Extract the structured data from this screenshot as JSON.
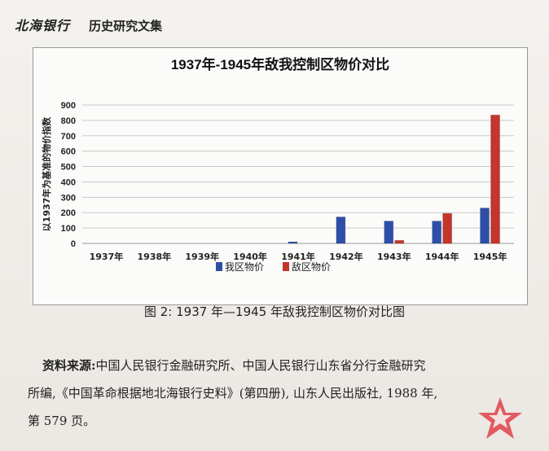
{
  "header": {
    "brand": "北海银行",
    "series": "历史研究文集"
  },
  "chart_data": {
    "type": "bar",
    "title": "1937年-1945年敌我控制区物价对比",
    "ylabel": "以1937年为基准的物价指数",
    "xlabel": "",
    "ylim": [
      0,
      900
    ],
    "yticks": [
      0,
      100,
      200,
      300,
      400,
      500,
      600,
      700,
      800,
      900
    ],
    "grid": true,
    "legend_position": "bottom",
    "categories": [
      "1937年",
      "1938年",
      "1939年",
      "1940年",
      "1941年",
      "1942年",
      "1943年",
      "1944年",
      "1945年"
    ],
    "series": [
      {
        "name": "我区物价",
        "color": "#2e4fa8",
        "values": [
          0,
          0,
          0,
          0,
          10,
          172,
          145,
          145,
          230
        ]
      },
      {
        "name": "敌区物价",
        "color": "#c4352b",
        "values": [
          0,
          0,
          0,
          0,
          0,
          0,
          20,
          195,
          835
        ]
      }
    ]
  },
  "caption": "图 2: 1937 年—1945 年敌我控制区物价对比图",
  "source": {
    "lead": "资料来源:",
    "line1": "中国人民银行金融研究所、中国人民银行山东省分行金融研究",
    "line2": "所编,《中国革命根据地北海银行史料》(第四册), 山东人民出版社, 1988 年,",
    "line3": "第 579 页。"
  },
  "stamp": {
    "color": "#e0414a"
  }
}
